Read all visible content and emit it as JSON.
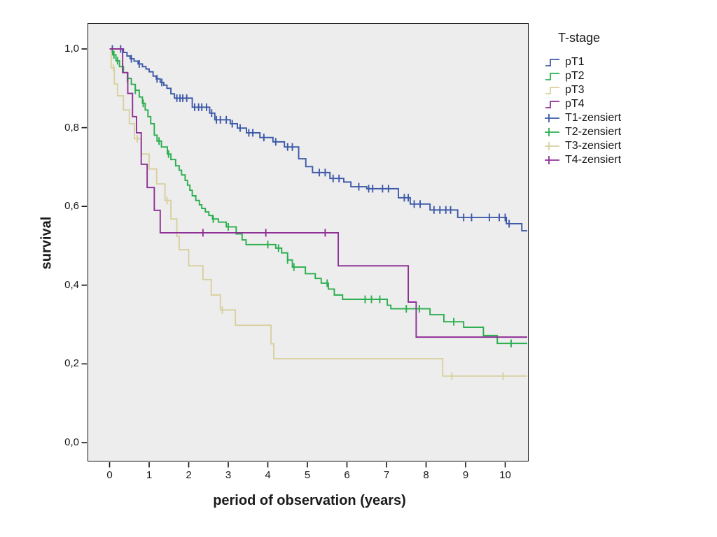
{
  "chart_data": {
    "type": "line",
    "subtype": "kaplan-meier-step-curves",
    "title": "",
    "xlabel": "period of observation (years)",
    "ylabel": "survival",
    "xlim": [
      0,
      10.56
    ],
    "ylim": [
      0.0,
      1.0
    ],
    "grid": false,
    "plot_background": "#ededed",
    "xticks": {
      "values": [
        0,
        1,
        2,
        3,
        4,
        5,
        6,
        7,
        8,
        9,
        10
      ],
      "labels": [
        "0",
        "1",
        "2",
        "3",
        "4",
        "5",
        "6",
        "7",
        "8",
        "9",
        "10"
      ]
    },
    "yticks": {
      "values": [
        0,
        0.2,
        0.4,
        0.6,
        0.8,
        1.0
      ],
      "labels": [
        "0,0",
        "0,2",
        "0,4",
        "0,6",
        "0,8",
        "1,0"
      ]
    },
    "legend": {
      "title": "T-stage",
      "position": "right"
    },
    "series": [
      {
        "name": "pT1",
        "censored_name": "T1-zensiert",
        "color": "#3d59a8",
        "steps": [
          [
            0,
            1.0
          ],
          [
            0.35,
            0.991
          ],
          [
            0.44,
            0.982
          ],
          [
            0.52,
            0.975
          ],
          [
            0.62,
            0.969
          ],
          [
            0.72,
            0.962
          ],
          [
            0.83,
            0.955
          ],
          [
            0.92,
            0.949
          ],
          [
            1.0,
            0.942
          ],
          [
            1.1,
            0.931
          ],
          [
            1.18,
            0.924
          ],
          [
            1.28,
            0.915
          ],
          [
            1.37,
            0.908
          ],
          [
            1.45,
            0.9
          ],
          [
            1.55,
            0.886
          ],
          [
            1.64,
            0.875
          ],
          [
            2.09,
            0.852
          ],
          [
            2.53,
            0.837
          ],
          [
            2.66,
            0.82
          ],
          [
            3.05,
            0.81
          ],
          [
            3.23,
            0.799
          ],
          [
            3.46,
            0.787
          ],
          [
            3.8,
            0.775
          ],
          [
            4.13,
            0.764
          ],
          [
            4.42,
            0.751
          ],
          [
            4.78,
            0.721
          ],
          [
            4.96,
            0.701
          ],
          [
            5.13,
            0.686
          ],
          [
            5.57,
            0.671
          ],
          [
            5.92,
            0.662
          ],
          [
            6.1,
            0.65
          ],
          [
            6.5,
            0.645
          ],
          [
            7.3,
            0.622
          ],
          [
            7.6,
            0.606
          ],
          [
            8.1,
            0.591
          ],
          [
            8.8,
            0.572
          ],
          [
            10.03,
            0.556
          ],
          [
            10.42,
            0.538
          ]
        ],
        "censor_times": [
          0.07,
          0.28,
          0.55,
          0.75,
          1.2,
          1.32,
          1.7,
          1.78,
          1.85,
          1.95,
          2.15,
          2.25,
          2.33,
          2.45,
          2.58,
          2.7,
          2.8,
          2.95,
          3.1,
          3.3,
          3.52,
          3.62,
          3.9,
          4.2,
          4.5,
          4.62,
          5.3,
          5.45,
          5.65,
          5.8,
          6.3,
          6.55,
          6.65,
          6.9,
          7.05,
          7.45,
          7.55,
          7.7,
          7.85,
          8.2,
          8.35,
          8.5,
          8.62,
          8.95,
          9.15,
          9.6,
          9.85,
          10.0,
          10.1
        ]
      },
      {
        "name": "pT2",
        "censored_name": "T2-zensiert",
        "color": "#2bae4e",
        "steps": [
          [
            0,
            1.0
          ],
          [
            0.08,
            0.985
          ],
          [
            0.16,
            0.97
          ],
          [
            0.25,
            0.955
          ],
          [
            0.35,
            0.94
          ],
          [
            0.45,
            0.925
          ],
          [
            0.55,
            0.91
          ],
          [
            0.65,
            0.895
          ],
          [
            0.75,
            0.878
          ],
          [
            0.83,
            0.862
          ],
          [
            0.9,
            0.845
          ],
          [
            0.97,
            0.828
          ],
          [
            1.04,
            0.81
          ],
          [
            1.13,
            0.781
          ],
          [
            1.2,
            0.766
          ],
          [
            1.31,
            0.751
          ],
          [
            1.46,
            0.733
          ],
          [
            1.55,
            0.719
          ],
          [
            1.67,
            0.703
          ],
          [
            1.76,
            0.692
          ],
          [
            1.82,
            0.68
          ],
          [
            1.91,
            0.666
          ],
          [
            1.97,
            0.654
          ],
          [
            2.03,
            0.641
          ],
          [
            2.09,
            0.627
          ],
          [
            2.18,
            0.615
          ],
          [
            2.27,
            0.604
          ],
          [
            2.33,
            0.595
          ],
          [
            2.42,
            0.586
          ],
          [
            2.51,
            0.577
          ],
          [
            2.6,
            0.568
          ],
          [
            2.75,
            0.56
          ],
          [
            2.95,
            0.548
          ],
          [
            3.2,
            0.53
          ],
          [
            3.35,
            0.515
          ],
          [
            3.45,
            0.503
          ],
          [
            4.2,
            0.494
          ],
          [
            4.35,
            0.482
          ],
          [
            4.5,
            0.464
          ],
          [
            4.62,
            0.446
          ],
          [
            4.95,
            0.429
          ],
          [
            5.2,
            0.417
          ],
          [
            5.35,
            0.405
          ],
          [
            5.53,
            0.39
          ],
          [
            5.68,
            0.375
          ],
          [
            5.89,
            0.364
          ],
          [
            7.02,
            0.349
          ],
          [
            7.11,
            0.34
          ],
          [
            8.1,
            0.325
          ],
          [
            8.45,
            0.307
          ],
          [
            8.95,
            0.293
          ],
          [
            9.45,
            0.272
          ],
          [
            9.8,
            0.252
          ]
        ],
        "censor_times": [
          0.11,
          0.2,
          0.33,
          0.45,
          0.65,
          0.85,
          1.25,
          1.49,
          2.62,
          3.0,
          4.0,
          4.27,
          4.5,
          4.66,
          5.5,
          6.46,
          6.62,
          6.83,
          7.5,
          7.83,
          8.7,
          10.15
        ]
      },
      {
        "name": "pT3",
        "censored_name": "T3-zensiert",
        "color": "#d8d0a0",
        "steps": [
          [
            0,
            1.0
          ],
          [
            0.04,
            0.952
          ],
          [
            0.12,
            0.911
          ],
          [
            0.2,
            0.881
          ],
          [
            0.35,
            0.845
          ],
          [
            0.5,
            0.81
          ],
          [
            0.63,
            0.772
          ],
          [
            0.8,
            0.733
          ],
          [
            1.0,
            0.695
          ],
          [
            1.19,
            0.657
          ],
          [
            1.4,
            0.615
          ],
          [
            1.55,
            0.568
          ],
          [
            1.7,
            0.524
          ],
          [
            1.76,
            0.49
          ],
          [
            2.0,
            0.449
          ],
          [
            2.36,
            0.414
          ],
          [
            2.57,
            0.375
          ],
          [
            2.8,
            0.337
          ],
          [
            3.18,
            0.298
          ],
          [
            4.08,
            0.251
          ],
          [
            4.15,
            0.213
          ],
          [
            8.42,
            0.169
          ]
        ],
        "censor_times": [
          0.1,
          0.7,
          1.45,
          2.85,
          8.65,
          9.95
        ]
      },
      {
        "name": "pT4",
        "censored_name": "T4-zensiert",
        "color": "#8e3096",
        "steps": [
          [
            0,
            1.0
          ],
          [
            0.33,
            0.94
          ],
          [
            0.46,
            0.887
          ],
          [
            0.58,
            0.828
          ],
          [
            0.68,
            0.787
          ],
          [
            0.8,
            0.707
          ],
          [
            0.95,
            0.648
          ],
          [
            1.13,
            0.59
          ],
          [
            1.28,
            0.533
          ],
          [
            5.78,
            0.449
          ],
          [
            7.55,
            0.357
          ],
          [
            7.75,
            0.268
          ]
        ],
        "censor_times": [
          2.36,
          3.95,
          5.45
        ]
      }
    ]
  }
}
